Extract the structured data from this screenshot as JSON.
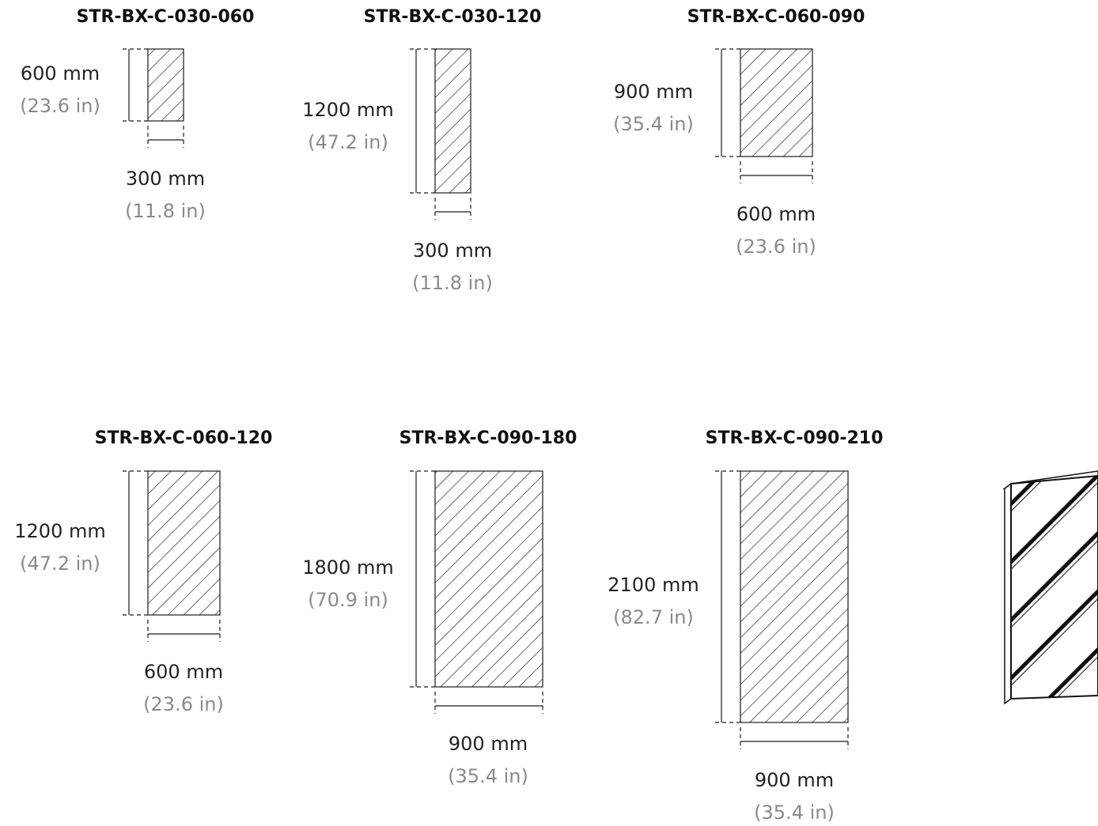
{
  "panels": [
    {
      "code": "STR-BX-C-030-060",
      "height_mm": "600 mm",
      "height_in": "(23.6 in)",
      "width_mm": "300 mm",
      "width_in": "(11.8 in)"
    },
    {
      "code": "STR-BX-C-030-120",
      "height_mm": "1200 mm",
      "height_in": "(47.2 in)",
      "width_mm": "300 mm",
      "width_in": "(11.8 in)"
    },
    {
      "code": "STR-BX-C-060-090",
      "height_mm": "900 mm",
      "height_in": "(35.4 in)",
      "width_mm": "600 mm",
      "width_in": "(23.6 in)"
    },
    {
      "code": "STR-BX-C-060-120",
      "height_mm": "1200 mm",
      "height_in": "(47.2 in)",
      "width_mm": "600 mm",
      "width_in": "(23.6 in)"
    },
    {
      "code": "STR-BX-C-090-180",
      "height_mm": "1800 mm",
      "height_in": "(70.9 in)",
      "width_mm": "900 mm",
      "width_in": "(35.4 in)"
    },
    {
      "code": "STR-BX-C-090-210",
      "height_mm": "2100 mm",
      "height_in": "(82.7 in)",
      "width_mm": "900 mm",
      "width_in": "(35.4 in)"
    }
  ],
  "icons": {
    "panel": "hatched-panel-icon",
    "perspective": "panel-perspective-icon"
  }
}
